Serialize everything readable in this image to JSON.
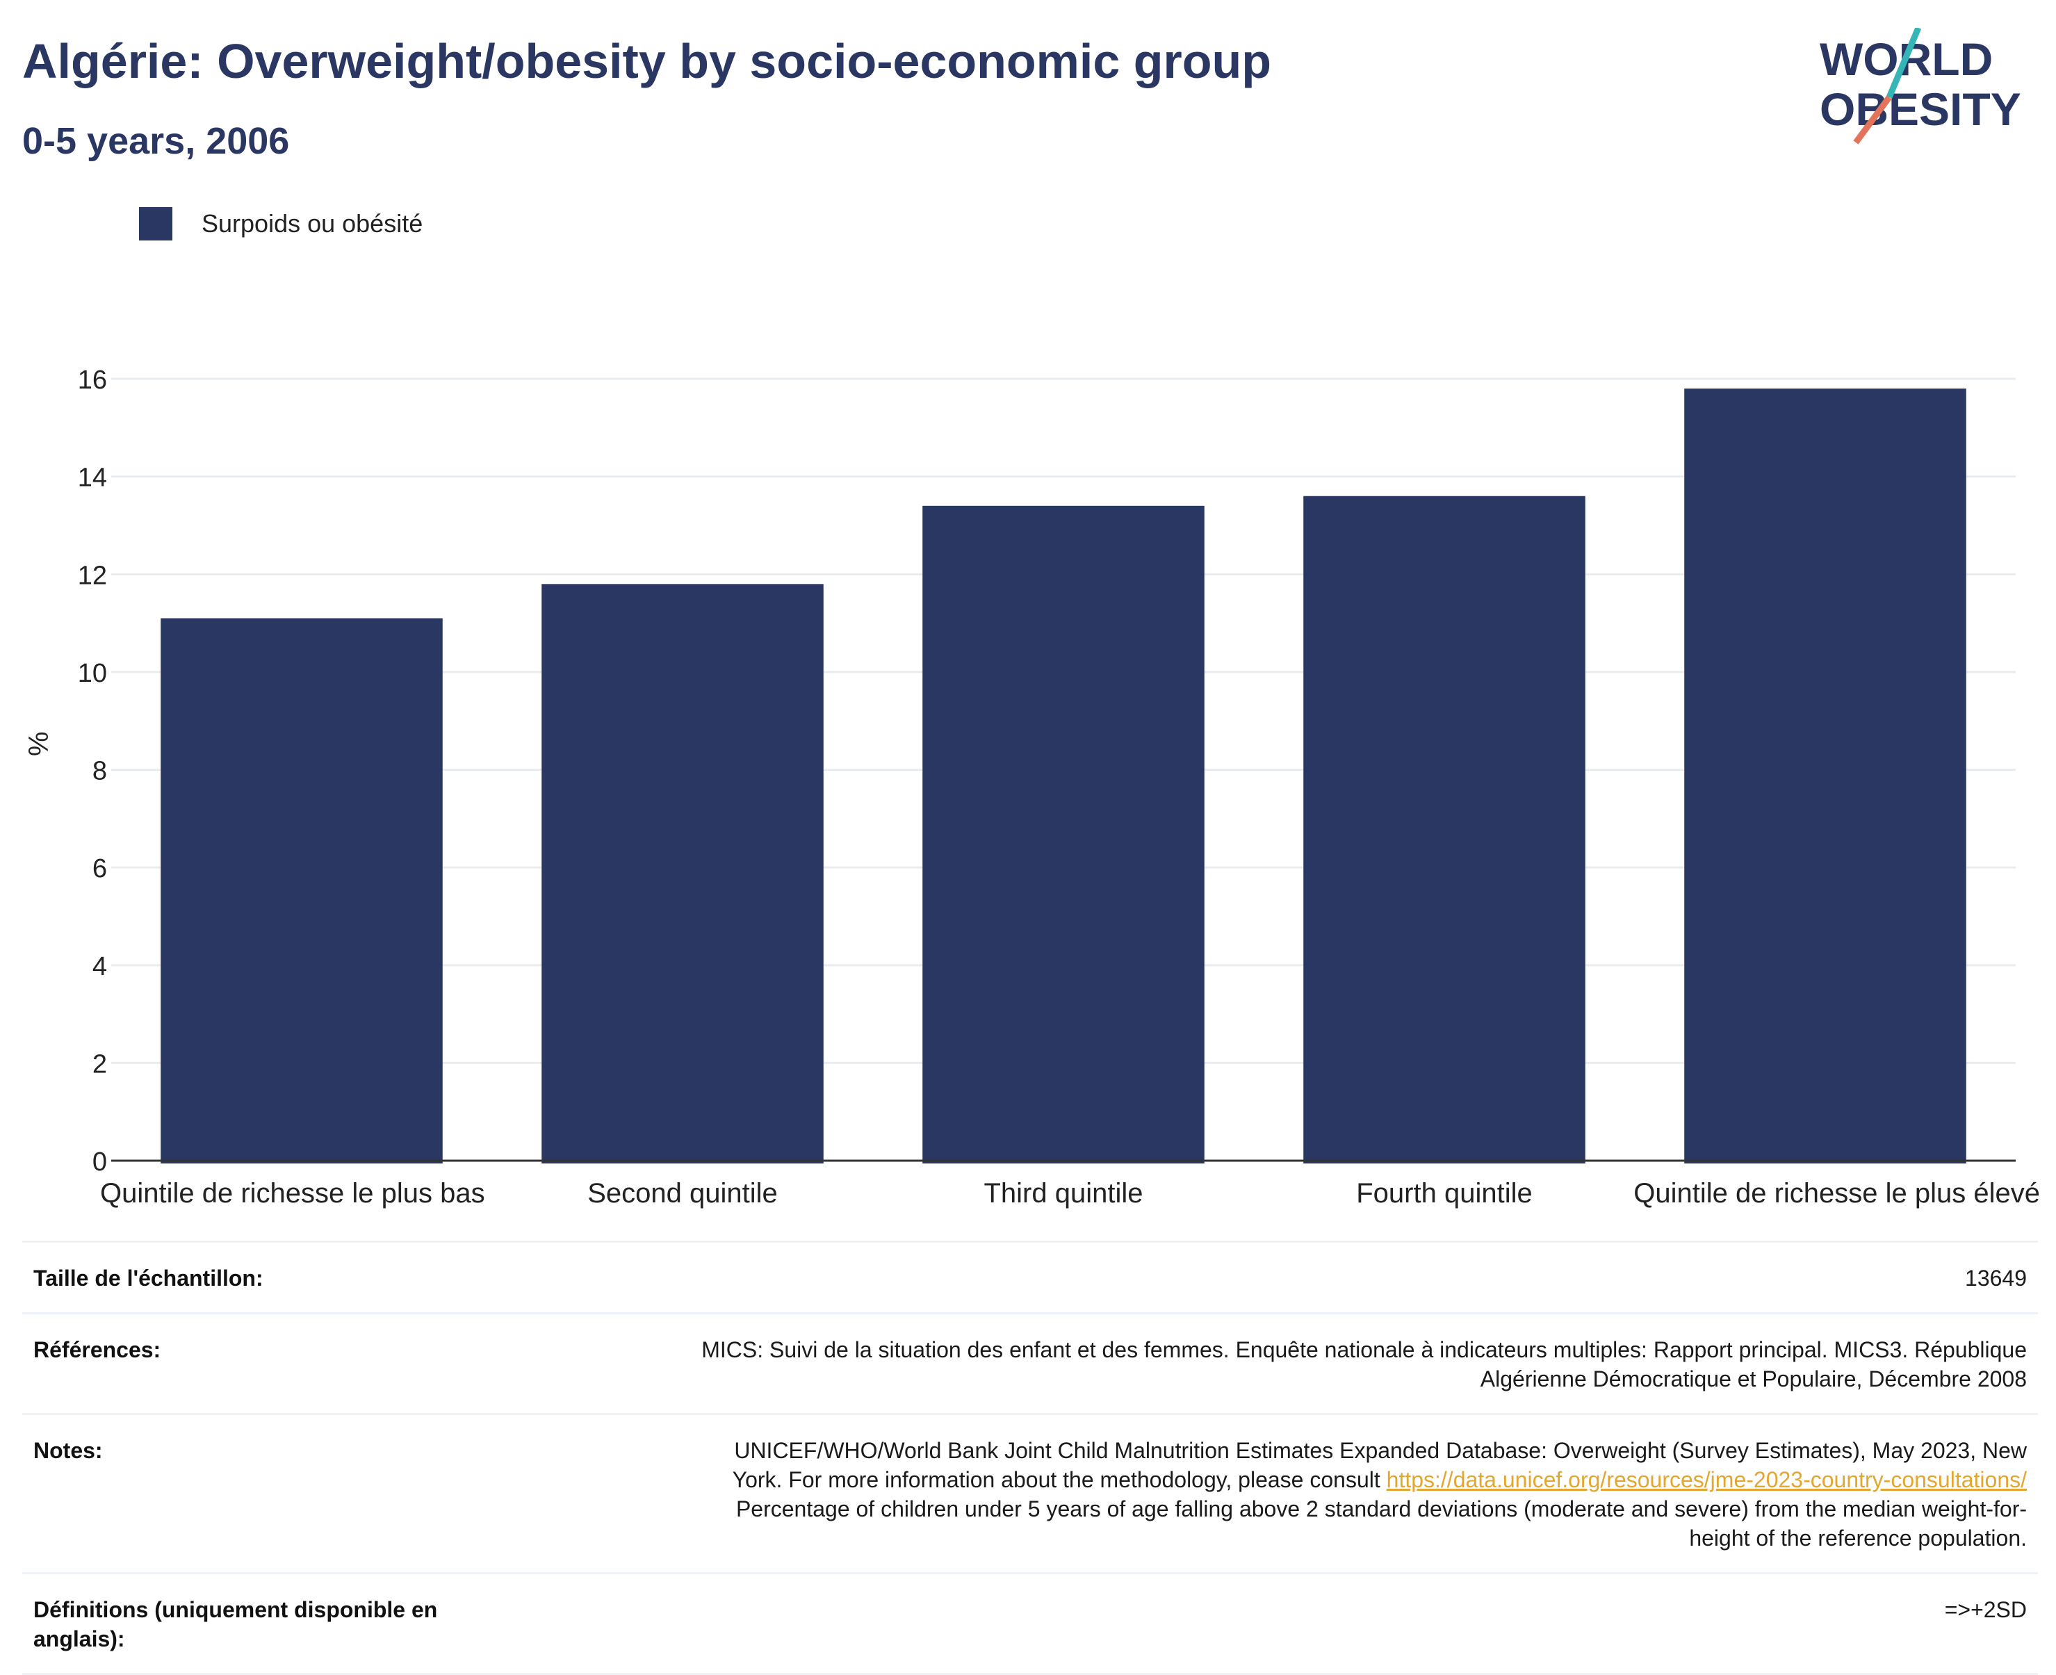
{
  "header": {
    "title": "Algérie: Overweight/obesity by socio-economic group",
    "subtitle": "0-5 years, 2006"
  },
  "logo": {
    "line1": "WORLD",
    "line2": "OBESITY"
  },
  "colors": {
    "bar": "#2a3763",
    "grid": "#e9ecef",
    "axis": "#333333",
    "text": "#222222",
    "link": "#e3a72f",
    "logo_teal": "#35b5b5",
    "logo_coral": "#e3735a"
  },
  "chart_data": {
    "type": "bar",
    "categories": [
      "Quintile de richesse le plus bas",
      "Second quintile",
      "Third quintile",
      "Fourth quintile",
      "Quintile de richesse le plus élevé"
    ],
    "series": [
      {
        "name": "Surpoids ou obésité",
        "values": [
          11.1,
          11.8,
          13.4,
          13.6,
          15.8
        ]
      }
    ],
    "ylabel": "%",
    "ylim": [
      0,
      16
    ],
    "yticks": [
      0,
      2,
      4,
      6,
      8,
      10,
      12,
      14,
      16
    ],
    "grid": true,
    "legend": "top-left"
  },
  "info": {
    "sample_label": "Taille de l'échantillon:",
    "sample_value": "13649",
    "references_label": "Références:",
    "references_line1": "MICS: Suivi de la situation des enfant et des femmes. Enquête nationale à indicateurs multiples: Rapport principal. MICS3. République",
    "references_line2": "Algérienne Démocratique et Populaire, Décembre 2008",
    "notes_label": "Notes:",
    "notes_line1": "UNICEF/WHO/World Bank Joint Child Malnutrition Estimates Expanded Database: Overweight (Survey Estimates), May 2023, New",
    "notes_line2_prefix": "York. For more information about the methodology, please consult",
    "notes_link": "https://data.unicef.org/resources/jme-2023-country-consultations/",
    "notes_line3": "Percentage of children under 5 years of age falling above 2 standard deviations (moderate and severe) from the median weight-for-",
    "notes_line4": "height of the reference population.",
    "definitions_label_line1": "Définitions (uniquement disponible en",
    "definitions_label_line2": "anglais):",
    "definitions_value": "=>+2SD"
  }
}
